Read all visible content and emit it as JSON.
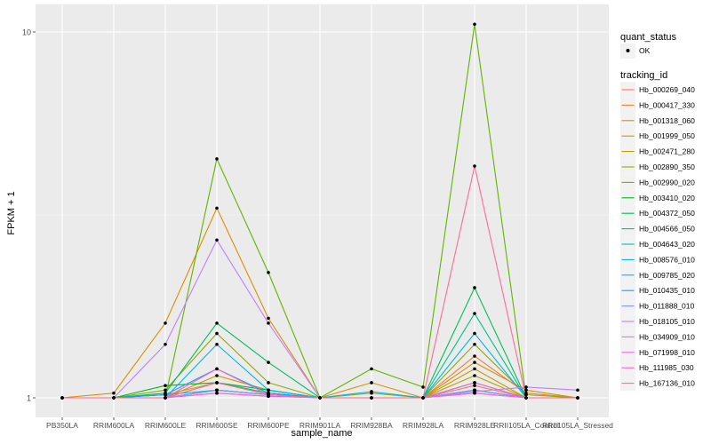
{
  "chart_data": {
    "type": "line",
    "title": "",
    "xlabel": "sample_name",
    "ylabel": "FPKM + 1",
    "y_scale": "log10",
    "y_ticks": [
      1,
      10
    ],
    "y_tick_labels": [
      "1",
      "10"
    ],
    "categories": [
      "PB350LA",
      "RRIM600LA",
      "RRIM600LE",
      "RRIM600SE",
      "RRIM600PE",
      "RRIM901LA",
      "RRIM928BA",
      "RRIM928LA",
      "RRIM928LE",
      "RRII105LA_Control",
      "RRII105LA_Stressed"
    ],
    "grid": true,
    "legend": {
      "placement": "right",
      "point_title": "quant_status",
      "point_entries": [
        {
          "label": "OK",
          "color": "#000000"
        }
      ],
      "line_title": "tracking_id"
    },
    "series": [
      {
        "name": "Hb_000269_040",
        "color": "#F8766D",
        "values": [
          1,
          1,
          1,
          1.05,
          1.02,
          1,
          1,
          1,
          1.08,
          1,
          1
        ]
      },
      {
        "name": "Hb_000417_330",
        "color": "#EC8239",
        "values": [
          1,
          1,
          1.02,
          1.1,
          1.03,
          1,
          1,
          1,
          1.3,
          1.03,
          1
        ]
      },
      {
        "name": "Hb_001318_060",
        "color": "#DB8E00",
        "values": [
          1,
          1.03,
          1.6,
          3.3,
          1.65,
          1,
          1.1,
          1,
          1.25,
          1.05,
          1
        ]
      },
      {
        "name": "Hb_001999_050",
        "color": "#C79800",
        "values": [
          1,
          1,
          1,
          1.15,
          1.05,
          1,
          1,
          1,
          1.2,
          1,
          1
        ]
      },
      {
        "name": "Hb_002471_280",
        "color": "#AEA200",
        "values": [
          1,
          1,
          1,
          1.05,
          1.02,
          1,
          1,
          1,
          1.15,
          1,
          1
        ]
      },
      {
        "name": "Hb_002890_350",
        "color": "#8FAA00",
        "values": [
          1,
          1,
          1.05,
          1.5,
          1.1,
          1,
          1.03,
          1,
          1.4,
          1.02,
          1
        ]
      },
      {
        "name": "Hb_002990_020",
        "color": "#64B200",
        "values": [
          1,
          1,
          1,
          4.5,
          2.2,
          1,
          1.2,
          1.07,
          10.5,
          1,
          1
        ]
      },
      {
        "name": "Hb_003410_020",
        "color": "#00B81B",
        "values": [
          1,
          1,
          1.08,
          1.1,
          1.05,
          1,
          1,
          1,
          1.05,
          1,
          1
        ]
      },
      {
        "name": "Hb_004372_050",
        "color": "#00BD5C",
        "values": [
          1,
          1,
          1.03,
          1.6,
          1.25,
          1,
          1,
          1,
          2.0,
          1,
          1
        ]
      },
      {
        "name": "Hb_004566_050",
        "color": "#00C086",
        "values": [
          1,
          1,
          1,
          1.1,
          1.03,
          1,
          1,
          1,
          1.7,
          1,
          1
        ]
      },
      {
        "name": "Hb_004643_020",
        "color": "#00C0AB",
        "values": [
          1,
          1,
          1,
          1.05,
          1.02,
          1,
          1,
          1,
          1.05,
          1,
          1
        ]
      },
      {
        "name": "Hb_008576_010",
        "color": "#00BCCD",
        "values": [
          1,
          1,
          1.02,
          1.05,
          1.02,
          1,
          1,
          1,
          1.05,
          1,
          1
        ]
      },
      {
        "name": "Hb_009785_020",
        "color": "#00B5EE",
        "values": [
          1,
          1,
          1,
          1.4,
          1.05,
          1,
          1.04,
          1,
          1.5,
          1,
          1
        ]
      },
      {
        "name": "Hb_010435_010",
        "color": "#00A7FF",
        "values": [
          1,
          1,
          1.02,
          1.2,
          1.03,
          1,
          1,
          1,
          1.1,
          1,
          1
        ]
      },
      {
        "name": "Hb_011888_010",
        "color": "#7F96FF",
        "values": [
          1,
          1,
          1,
          1.05,
          1.02,
          1,
          1,
          1,
          1.05,
          1,
          1
        ]
      },
      {
        "name": "Hb_018105_010",
        "color": "#BC81FF",
        "values": [
          1,
          1,
          1.4,
          2.7,
          1.6,
          1,
          1,
          1,
          1.04,
          1.07,
          1.05
        ]
      },
      {
        "name": "Hb_034909_010",
        "color": "#E26EF7",
        "values": [
          1,
          1,
          1,
          1.03,
          1.01,
          1,
          1,
          1,
          1.03,
          1,
          1
        ]
      },
      {
        "name": "Hb_071998_010",
        "color": "#F863DF",
        "values": [
          1,
          1,
          1,
          1.03,
          1.01,
          1,
          1,
          1,
          1.03,
          1,
          1
        ]
      },
      {
        "name": "Hb_111985_030",
        "color": "#FF62BF",
        "values": [
          1,
          1,
          1,
          1.2,
          1.02,
          1,
          1,
          1,
          1.1,
          1,
          1
        ]
      },
      {
        "name": "Hb_167136_010",
        "color": "#FF6A98",
        "values": [
          1,
          1,
          1,
          1.1,
          1.02,
          1,
          1,
          1,
          4.3,
          1,
          1
        ]
      }
    ]
  }
}
